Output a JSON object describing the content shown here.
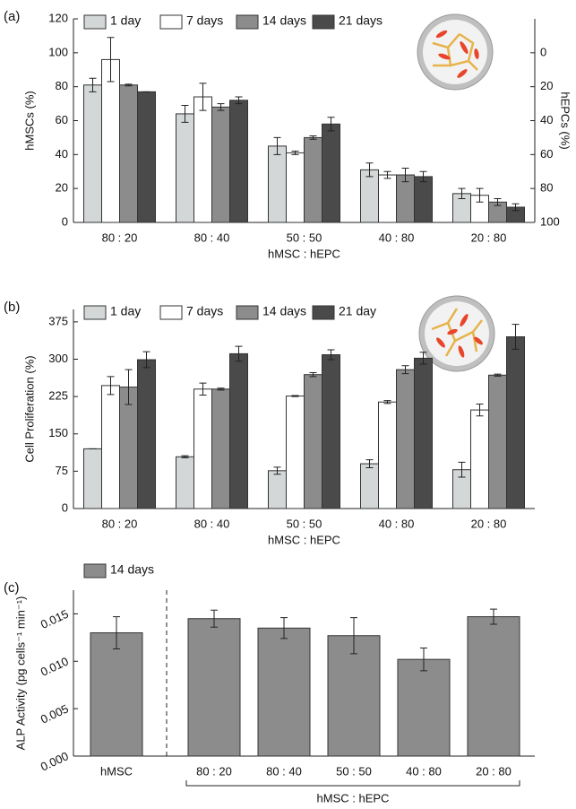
{
  "chart_data": [
    {
      "type": "bar",
      "panel_label": "(a)",
      "ylabel": "hMSCs (%)",
      "y2label": "hEPCs (%)",
      "xlabel": "hMSC : hEPC",
      "categories": [
        "80 : 20",
        "80 : 40",
        "50 : 50",
        "40 : 80",
        "20 : 80"
      ],
      "series": [
        {
          "name": "1 day",
          "color": "#d3d7d7",
          "values": [
            81,
            64,
            45,
            31,
            17
          ],
          "errors": [
            4,
            5,
            5,
            4,
            3
          ]
        },
        {
          "name": "7 days",
          "color": "#ffffff",
          "values": [
            96,
            74,
            41,
            28,
            16
          ],
          "errors": [
            13,
            8,
            1,
            2,
            4
          ]
        },
        {
          "name": "14 days",
          "color": "#8c8c8c",
          "values": [
            81,
            68,
            50,
            28,
            12
          ],
          "errors": [
            0.5,
            2,
            1,
            4,
            2
          ]
        },
        {
          "name": "21 days",
          "color": "#4a4a4a",
          "values": [
            77,
            72,
            58,
            27,
            9
          ],
          "errors": [
            0,
            2,
            4,
            3,
            2
          ]
        }
      ],
      "ylim": [
        0,
        120
      ],
      "yticks": [
        0,
        20,
        40,
        60,
        80,
        100,
        120
      ],
      "y2lim": [
        100,
        -20
      ],
      "y2ticks": [
        0,
        20,
        40,
        60,
        80,
        100
      ]
    },
    {
      "type": "bar",
      "panel_label": "(b)",
      "ylabel": "Cell Proliferation (%)",
      "xlabel": "hMSC : hEPC",
      "categories": [
        "80 : 20",
        "80 : 40",
        "50 : 50",
        "40 : 80",
        "20 : 80"
      ],
      "series": [
        {
          "name": "1 day",
          "color": "#d3d7d7",
          "values": [
            120,
            104,
            76,
            90,
            78
          ],
          "errors": [
            0,
            2,
            7,
            8,
            15
          ]
        },
        {
          "name": "7 days",
          "color": "#ffffff",
          "values": [
            247,
            240,
            226,
            214,
            198
          ],
          "errors": [
            18,
            12,
            1,
            3,
            12
          ]
        },
        {
          "name": "14 days",
          "color": "#8c8c8c",
          "values": [
            244,
            240,
            269,
            279,
            268
          ],
          "errors": [
            35,
            2,
            4,
            8,
            2
          ]
        },
        {
          "name": "21 day",
          "color": "#4a4a4a",
          "values": [
            299,
            311,
            309,
            302,
            345
          ],
          "errors": [
            16,
            15,
            10,
            12,
            25
          ]
        }
      ],
      "ylim": [
        0,
        400
      ],
      "yticks": [
        0,
        75,
        150,
        225,
        300,
        375
      ]
    },
    {
      "type": "bar",
      "panel_label": "(c)",
      "ylabel": "ALP Activity (pg cells⁻¹ min⁻¹)",
      "xlabel": "hMSC : hEPC",
      "categories": [
        "hMSC",
        "80 : 20",
        "80 : 40",
        "50 : 50",
        "40 : 80",
        "20 : 80"
      ],
      "series": [
        {
          "name": "14 days",
          "color": "#8c8c8c",
          "values": [
            0.013,
            0.0145,
            0.0135,
            0.0127,
            0.0102,
            0.0147
          ],
          "errors": [
            0.0017,
            0.0009,
            0.0011,
            0.0019,
            0.0012,
            0.0008
          ]
        }
      ],
      "ylim": [
        0,
        0.0175
      ],
      "yticks": [
        {
          "value": 0,
          "label": "0.000"
        },
        {
          "value": 0.005,
          "label": "0.005"
        },
        {
          "value": 0.01,
          "label": "0.010"
        },
        {
          "value": 0.015,
          "label": "0.015"
        }
      ]
    }
  ]
}
